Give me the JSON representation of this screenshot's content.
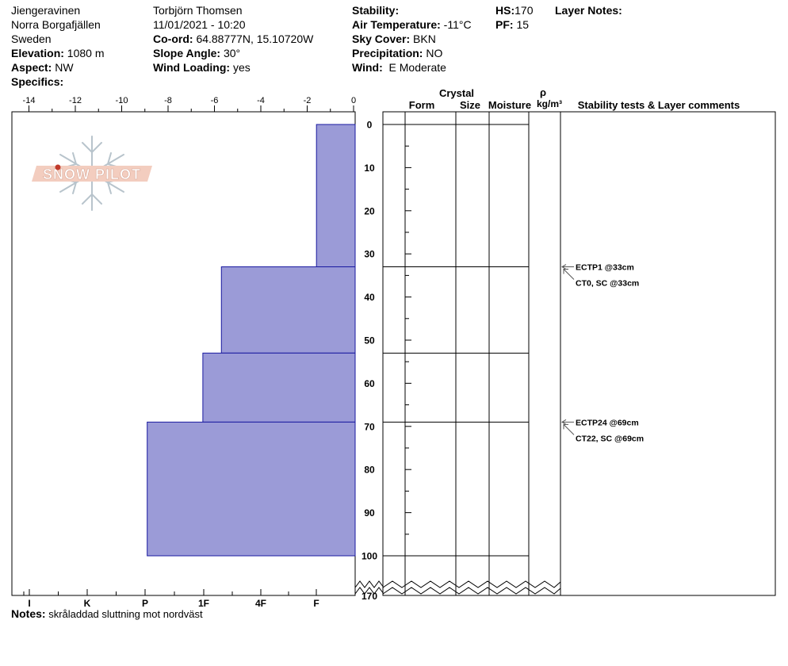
{
  "header": {
    "location": "Jiengeravinen",
    "region": "Norra Borgafjällen",
    "country": "Sweden",
    "elevation_label": "Elevation:",
    "elevation": "1080 m",
    "aspect_label": "Aspect:",
    "aspect": "NW",
    "specifics_label": "Specifics:",
    "observer": "Torbjörn Thomsen",
    "datetime": "11/01/2021 - 10:20",
    "coord_label": "Co-ord:",
    "coord": "64.88777N, 15.10720W",
    "slope_label": "Slope Angle:",
    "slope": "30°",
    "wind_loading_label": "Wind Loading:",
    "wind_loading": "yes",
    "stability_label": "Stability:",
    "air_temp_label": "Air Temperature:",
    "air_temp": "-11°C",
    "sky_label": "Sky Cover:",
    "sky": "BKN",
    "precip_label": "Precipitation:",
    "precip": "NO",
    "wind_label": "Wind:",
    "wind": "E Moderate",
    "hs_label": "HS:",
    "hs": "170",
    "pf_label": "PF:",
    "pf": "15",
    "layer_notes_label": "Layer Notes:"
  },
  "columns": {
    "crystal": "Crystal",
    "form": "Form",
    "size": "Size",
    "moisture": "Moisture",
    "rho": "ρ",
    "density_unit": "kg/m³",
    "stability_comments": "Stability tests & Layer comments"
  },
  "logo_text": "SNOW PILOT",
  "notes_label": "Notes:",
  "notes": "skråladdad sluttning mot nordväst",
  "colors": {
    "hardness_fill": "#9b9bd7",
    "hardness_stroke": "#1a1aa0",
    "logo_red": "#c0392b",
    "logo_band": "#f3cdbf",
    "logo_flake": "#b8c4cc"
  },
  "chart_data": {
    "type": "bar",
    "orientation": "horizontal",
    "temperature_axis": {
      "ticks": [
        "-14",
        "-12",
        "-10",
        "-8",
        "-6",
        "-4",
        "-2",
        "0"
      ],
      "range": [
        -14,
        0
      ]
    },
    "hardness_axis": {
      "ticks": [
        "I",
        "K",
        "P",
        "1F",
        "4F",
        "F"
      ]
    },
    "depth_axis": {
      "ticks": [
        "0",
        "10",
        "20",
        "30",
        "40",
        "50",
        "60",
        "70",
        "80",
        "90",
        "100"
      ],
      "bottom_label": "170",
      "range": [
        0,
        100
      ]
    },
    "layers": [
      {
        "top": 0,
        "bottom": 33,
        "hardness_value": 1.6
      },
      {
        "top": 33,
        "bottom": 53,
        "hardness_value": 5.7
      },
      {
        "top": 53,
        "bottom": 69,
        "hardness_value": 6.5
      },
      {
        "top": 69,
        "bottom": 100,
        "hardness_value": 8.9
      }
    ],
    "layer_boundaries": [
      0,
      33,
      53,
      69,
      100
    ],
    "stability_tests": [
      {
        "depth": 33,
        "lines": [
          "ECTP1 @33cm",
          "CT0, SC @33cm"
        ]
      },
      {
        "depth": 69,
        "lines": [
          "ECTP24 @69cm",
          "CT22, SC @69cm"
        ]
      }
    ]
  }
}
